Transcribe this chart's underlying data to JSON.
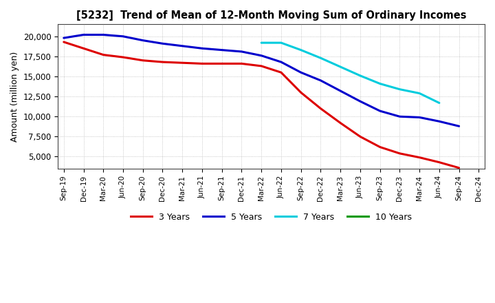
{
  "title": "[5232]  Trend of Mean of 12-Month Moving Sum of Ordinary Incomes",
  "ylabel": "Amount (million yen)",
  "background_color": "#ffffff",
  "grid_color": "#999999",
  "ylim": [
    3500,
    21500
  ],
  "yticks": [
    5000,
    7500,
    10000,
    12500,
    15000,
    17500,
    20000
  ],
  "x_labels": [
    "Sep-19",
    "Dec-19",
    "Mar-20",
    "Jun-20",
    "Sep-20",
    "Dec-20",
    "Mar-21",
    "Jun-21",
    "Sep-21",
    "Dec-21",
    "Mar-22",
    "Jun-22",
    "Sep-22",
    "Dec-22",
    "Mar-23",
    "Jun-23",
    "Sep-23",
    "Dec-23",
    "Mar-24",
    "Jun-24",
    "Sep-24",
    "Dec-24"
  ],
  "series": [
    {
      "name": "3 Years",
      "color": "#dd0000",
      "values": [
        19300,
        18500,
        17700,
        17400,
        17000,
        16800,
        16700,
        16600,
        16600,
        16600,
        16300,
        15500,
        13000,
        11000,
        9200,
        7500,
        6200,
        5400,
        4900,
        4300,
        3600,
        null
      ]
    },
    {
      "name": "5 Years",
      "color": "#0000cc",
      "values": [
        19800,
        20200,
        20200,
        20000,
        19500,
        19100,
        18800,
        18500,
        18300,
        18100,
        17600,
        16800,
        15500,
        14500,
        13200,
        11900,
        10700,
        10000,
        9900,
        9400,
        8800,
        null
      ]
    },
    {
      "name": "7 Years",
      "color": "#00ccdd",
      "values": [
        null,
        null,
        null,
        null,
        null,
        null,
        null,
        null,
        null,
        null,
        19200,
        19200,
        18300,
        17300,
        16200,
        15100,
        14100,
        13400,
        12900,
        11700,
        null,
        null
      ]
    },
    {
      "name": "10 Years",
      "color": "#009900",
      "values": [
        null,
        null,
        null,
        null,
        null,
        null,
        null,
        null,
        null,
        null,
        null,
        null,
        null,
        null,
        null,
        null,
        null,
        null,
        null,
        null,
        null,
        null
      ]
    }
  ],
  "legend_entries": [
    {
      "name": "3 Years",
      "color": "#dd0000"
    },
    {
      "name": "5 Years",
      "color": "#0000cc"
    },
    {
      "name": "7 Years",
      "color": "#00ccdd"
    },
    {
      "name": "10 Years",
      "color": "#009900"
    }
  ]
}
